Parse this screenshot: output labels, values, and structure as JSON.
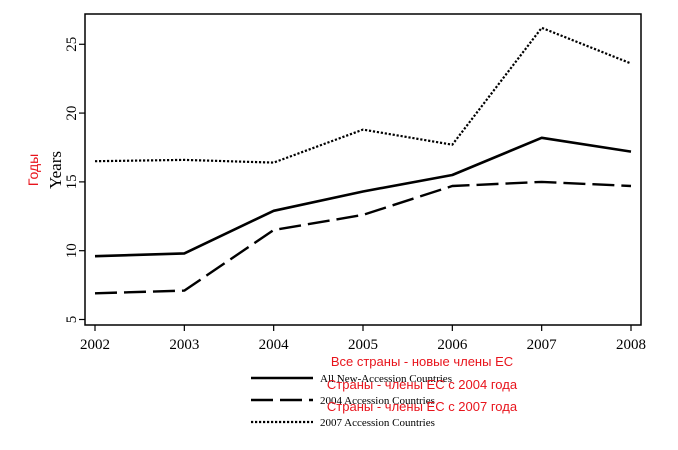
{
  "chart_data": {
    "type": "line",
    "title": "",
    "xlabel": "",
    "ylabel": "Years",
    "ylabel_translation": "Годы",
    "x": [
      2002,
      2003,
      2004,
      2005,
      2006,
      2007,
      2008
    ],
    "x_tick_labels": [
      "2002",
      "2003",
      "2004",
      "2005",
      "2006",
      "2007",
      "2008"
    ],
    "y_ticks": [
      5,
      10,
      15,
      20,
      25
    ],
    "y_tick_labels": [
      "5",
      "10",
      "15",
      "20",
      "25"
    ],
    "ylim": [
      4.6,
      27.2
    ],
    "grid": false,
    "legend_position": "bottom",
    "series": [
      {
        "name": "All New-Accession Countries",
        "translation": "Все страны - новые члены ЕС",
        "style": "solid",
        "values": [
          9.6,
          9.8,
          12.9,
          14.3,
          15.5,
          18.2,
          17.2
        ]
      },
      {
        "name": "2004 Accession Countries",
        "translation": "Страны - члены ЕС с 2004 года",
        "style": "dashed",
        "values": [
          6.9,
          7.1,
          11.5,
          12.6,
          14.7,
          15.0,
          14.7
        ]
      },
      {
        "name": "2007 Accession Countries",
        "translation": "Страны - члены ЕС с 2007 года",
        "style": "dotted",
        "values": [
          16.5,
          16.6,
          16.4,
          18.8,
          17.7,
          26.2,
          23.6
        ]
      }
    ]
  },
  "colors": {
    "line": "#000000",
    "translation_text": "#e8141c",
    "background": "#ffffff"
  }
}
